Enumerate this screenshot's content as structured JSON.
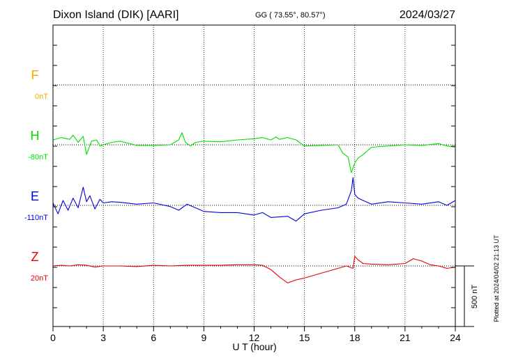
{
  "header": {
    "station": "Dixon Island (DIK)  [AARI]",
    "coords": "GG ( 73.55°,  80.57°)",
    "date": "2024/03/27"
  },
  "side_note": "Plotted at 2024/04/02 21:13 UT",
  "scale_label": "500 nT",
  "colors": {
    "F": "#f5a800",
    "H": "#00e000",
    "E": "#0000e0",
    "Z": "#e00000",
    "axis": "#000000"
  },
  "chart_data": {
    "type": "line",
    "xlabel": "U T (hour)",
    "xlim": [
      0,
      24
    ],
    "x_ticks": [
      "0",
      "3",
      "6",
      "9",
      "12",
      "15",
      "18",
      "21",
      "24"
    ],
    "grid": "dotted vertical at each 3 hours; dotted baseline per component",
    "scale_bar_nT": 500,
    "series": [
      {
        "name": "F",
        "baseline_label": "0nT",
        "x": [],
        "values": []
      },
      {
        "name": "H",
        "baseline_label": "-80nT",
        "x": [
          0,
          0.5,
          1,
          1.2,
          1.5,
          1.8,
          2,
          2.3,
          2.6,
          2.8,
          3,
          3.5,
          4,
          5,
          6,
          7,
          7.5,
          7.7,
          7.9,
          8.2,
          8.5,
          9,
          10,
          11,
          11.5,
          12,
          12.5,
          13,
          13.3,
          13.5,
          14,
          14.5,
          15,
          16,
          17,
          17.3,
          17.6,
          17.8,
          18,
          18.2,
          18.5,
          19,
          20,
          21,
          22,
          23,
          23.5,
          24
        ],
        "values": [
          40,
          60,
          45,
          80,
          20,
          70,
          -80,
          30,
          40,
          -10,
          0,
          20,
          30,
          -5,
          -5,
          0,
          40,
          100,
          20,
          -10,
          20,
          30,
          25,
          40,
          45,
          50,
          60,
          40,
          65,
          45,
          60,
          40,
          -10,
          -5,
          0,
          -70,
          -100,
          -230,
          -150,
          -110,
          -80,
          -20,
          -10,
          0,
          -5,
          10,
          -10,
          -20
        ]
      },
      {
        "name": "E",
        "baseline_label": "-110nT",
        "x": [
          0,
          0.3,
          0.6,
          0.9,
          1.2,
          1.5,
          1.8,
          2,
          2.2,
          2.5,
          2.8,
          3,
          3.5,
          4,
          5,
          6,
          7,
          7.5,
          8,
          9,
          10,
          11,
          12,
          12.5,
          13,
          14,
          14.5,
          15,
          16,
          17,
          17.5,
          17.8,
          17.9,
          18,
          18.2,
          18.5,
          19,
          20,
          21,
          22,
          23,
          23.5,
          24
        ],
        "values": [
          20,
          -70,
          40,
          -40,
          60,
          -20,
          150,
          30,
          80,
          -30,
          50,
          20,
          30,
          25,
          10,
          20,
          -10,
          -40,
          10,
          -50,
          -60,
          -60,
          -80,
          -60,
          -100,
          -90,
          -130,
          -70,
          -40,
          -20,
          10,
          120,
          230,
          90,
          60,
          40,
          10,
          30,
          20,
          10,
          30,
          0,
          40
        ]
      },
      {
        "name": "Z",
        "baseline_label": "20nT",
        "x": [
          0,
          0.5,
          1,
          1.5,
          2,
          2.5,
          3,
          4,
          5,
          6,
          7,
          8,
          9,
          10,
          11,
          12,
          12.5,
          13,
          13.5,
          14,
          14.5,
          15,
          15.5,
          16,
          16.5,
          17,
          17.5,
          17.9,
          18,
          18.2,
          18.5,
          19,
          20,
          21,
          21.5,
          22,
          22.5,
          23,
          23.5,
          24
        ],
        "values": [
          0,
          5,
          0,
          10,
          5,
          -10,
          0,
          0,
          -5,
          5,
          0,
          5,
          5,
          5,
          10,
          10,
          5,
          -30,
          -90,
          -140,
          -115,
          -100,
          -80,
          -60,
          -40,
          -20,
          0,
          -20,
          80,
          50,
          20,
          15,
          10,
          20,
          60,
          40,
          10,
          0,
          -20,
          -10
        ]
      }
    ]
  }
}
